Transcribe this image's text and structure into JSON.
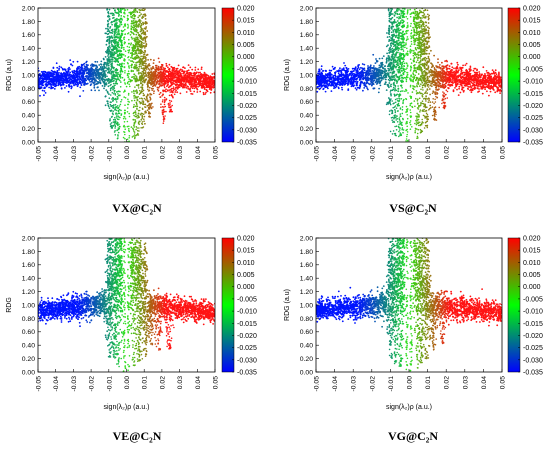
{
  "chart_data": [
    {
      "type": "scatter",
      "caption": "VX@C₂N",
      "xlabel": "sign(λ₂)ρ (a.u.)",
      "ylabel": "RDG (a.u)",
      "xlim": [
        -0.05,
        0.05
      ],
      "ylim": [
        0,
        2.0
      ],
      "xticks": [
        -0.05,
        -0.04,
        -0.03,
        -0.02,
        -0.01,
        0,
        0.01,
        0.02,
        0.03,
        0.04,
        0.05
      ],
      "yticks": [
        0.0,
        0.2,
        0.4,
        0.6,
        0.8,
        1.0,
        1.2,
        1.4,
        1.6,
        1.8,
        2.0
      ],
      "xtick_labels": [
        "-0.05",
        "-0.04",
        "-0.03",
        "-0.02",
        "-0.01",
        "0.00",
        "0.01",
        "0.02",
        "0.03",
        "0.04",
        "0.05"
      ],
      "ytick_labels": [
        "0.00",
        "0.20",
        "0.40",
        "0.60",
        "0.80",
        "1.00",
        "1.20",
        "1.40",
        "1.60",
        "1.80",
        "2.00"
      ],
      "colorbar": {
        "range": [
          -0.035,
          0.02
        ],
        "labels": [
          "0.020",
          "0.015",
          "0.010",
          "0.005",
          "0.000",
          "-0.005",
          "-0.010",
          "-0.015",
          "-0.020",
          "-0.025",
          "-0.030",
          "-0.035"
        ],
        "colors": [
          "#0000ff",
          "#00ff00",
          "#ff0000"
        ]
      },
      "spikes": [
        [
          -0.0085,
          0.14
        ],
        [
          -0.0065,
          0.1
        ],
        [
          -0.0045,
          0.05
        ],
        [
          0.0045,
          0.05
        ],
        [
          0.0065,
          0.1
        ],
        [
          0.009,
          0.18
        ],
        [
          0.013,
          0.36
        ],
        [
          0.021,
          0.28
        ],
        [
          0.025,
          0.45
        ]
      ]
    },
    {
      "type": "scatter",
      "caption": "VS@C₂N",
      "xlabel": "sign(λ₂)ρ (a.u.)",
      "ylabel": "RDG (a.u)",
      "xlim": [
        -0.05,
        0.05
      ],
      "ylim": [
        0,
        2.0
      ],
      "xticks": [
        -0.05,
        -0.04,
        -0.03,
        -0.02,
        -0.01,
        0,
        0.01,
        0.02,
        0.03,
        0.04,
        0.05
      ],
      "yticks": [
        0.0,
        0.2,
        0.4,
        0.6,
        0.8,
        1.0,
        1.2,
        1.4,
        1.6,
        1.8,
        2.0
      ],
      "xtick_labels": [
        "-0.05",
        "-0.04",
        "-0.03",
        "-0.02",
        "-0.01",
        "0.00",
        "0.01",
        "0.02",
        "0.03",
        "0.04",
        "0.05"
      ],
      "ytick_labels": [
        "0.00",
        "0.20",
        "0.40",
        "0.60",
        "0.80",
        "1.00",
        "1.20",
        "1.40",
        "1.60",
        "1.80",
        "2.00"
      ],
      "colorbar": {
        "range": [
          -0.035,
          0.02
        ],
        "labels": [
          "0.020",
          "0.015",
          "0.010",
          "0.005",
          "0.000",
          "-0.005",
          "-0.010",
          "-0.015",
          "-0.020",
          "-0.025",
          "-0.030",
          "-0.035"
        ],
        "colors": [
          "#0000ff",
          "#00ff00",
          "#ff0000"
        ]
      },
      "spikes": [
        [
          -0.0085,
          0.12
        ],
        [
          -0.0062,
          0.08
        ],
        [
          -0.0042,
          0.05
        ],
        [
          0.0042,
          0.05
        ],
        [
          0.0065,
          0.09
        ],
        [
          0.0095,
          0.2
        ],
        [
          0.014,
          0.32
        ],
        [
          0.019,
          0.5
        ]
      ]
    },
    {
      "type": "scatter",
      "caption": "VE@C₂N",
      "xlabel": "sign(λ₂)ρ (a.u.)",
      "ylabel": "RDG",
      "xlim": [
        -0.05,
        0.05
      ],
      "ylim": [
        0,
        2.0
      ],
      "xticks": [
        -0.05,
        -0.04,
        -0.03,
        -0.02,
        -0.01,
        0,
        0.01,
        0.02,
        0.03,
        0.04,
        0.05
      ],
      "yticks": [
        0.0,
        0.2,
        0.4,
        0.6,
        0.8,
        1.0,
        1.2,
        1.4,
        1.6,
        1.8,
        2.0
      ],
      "xtick_labels": [
        "-0.05",
        "-0.04",
        "-0.03",
        "-0.02",
        "-0.01",
        "0.00",
        "0.01",
        "0.02",
        "0.03",
        "0.04",
        "0.05"
      ],
      "ytick_labels": [
        "0.00",
        "0.20",
        "0.40",
        "0.60",
        "0.80",
        "1.00",
        "1.20",
        "1.40",
        "1.60",
        "1.80",
        "2.00"
      ],
      "colorbar": {
        "range": [
          -0.035,
          0.02
        ],
        "labels": [
          "0.020",
          "0.015",
          "0.010",
          "0.005",
          "0.000",
          "-0.005",
          "-0.010",
          "-0.015",
          "-0.020",
          "-0.025",
          "-0.030",
          "-0.035"
        ],
        "colors": [
          "#0000ff",
          "#00ff00",
          "#ff0000"
        ]
      },
      "spikes": [
        [
          -0.0095,
          0.22
        ],
        [
          -0.007,
          0.2
        ],
        [
          -0.0045,
          0.08
        ],
        [
          0.0045,
          0.08
        ],
        [
          0.0075,
          0.16
        ],
        [
          0.0105,
          0.22
        ],
        [
          0.014,
          0.4
        ],
        [
          0.018,
          0.3
        ],
        [
          0.024,
          0.34
        ]
      ]
    },
    {
      "type": "scatter",
      "caption": "VG@C₂N",
      "xlabel": "sign(λ₂)ρ (a.u.)",
      "ylabel": "RDG (a.u)",
      "xlim": [
        -0.05,
        0.05
      ],
      "ylim": [
        0,
        2.0
      ],
      "xticks": [
        -0.05,
        -0.04,
        -0.03,
        -0.02,
        -0.01,
        0,
        0.01,
        0.02,
        0.03,
        0.04,
        0.05
      ],
      "yticks": [
        0.0,
        0.2,
        0.4,
        0.6,
        0.8,
        1.0,
        1.2,
        1.4,
        1.6,
        1.8,
        2.0
      ],
      "xtick_labels": [
        "-0.05",
        "-0.04",
        "-0.03",
        "-0.02",
        "-0.01",
        "0.00",
        "0.01",
        "0.02",
        "0.03",
        "0.04",
        "0.05"
      ],
      "ytick_labels": [
        "0.00",
        "0.20",
        "0.40",
        "0.60",
        "0.80",
        "1.00",
        "1.20",
        "1.40",
        "1.60",
        "1.80",
        "2.00"
      ],
      "colorbar": {
        "range": [
          -0.035,
          0.02
        ],
        "labels": [
          "0.020",
          "0.015",
          "0.010",
          "0.005",
          "0.000",
          "-0.005",
          "-0.010",
          "-0.015",
          "-0.020",
          "-0.025",
          "-0.030",
          "-0.035"
        ],
        "colors": [
          "#0000ff",
          "#00ff00",
          "#ff0000"
        ]
      },
      "spikes": [
        [
          -0.0095,
          0.2
        ],
        [
          -0.007,
          0.12
        ],
        [
          -0.0045,
          0.06
        ],
        [
          0.0045,
          0.06
        ],
        [
          0.007,
          0.12
        ],
        [
          0.0095,
          0.2
        ],
        [
          0.013,
          0.32
        ],
        [
          0.018,
          0.42
        ]
      ]
    }
  ]
}
